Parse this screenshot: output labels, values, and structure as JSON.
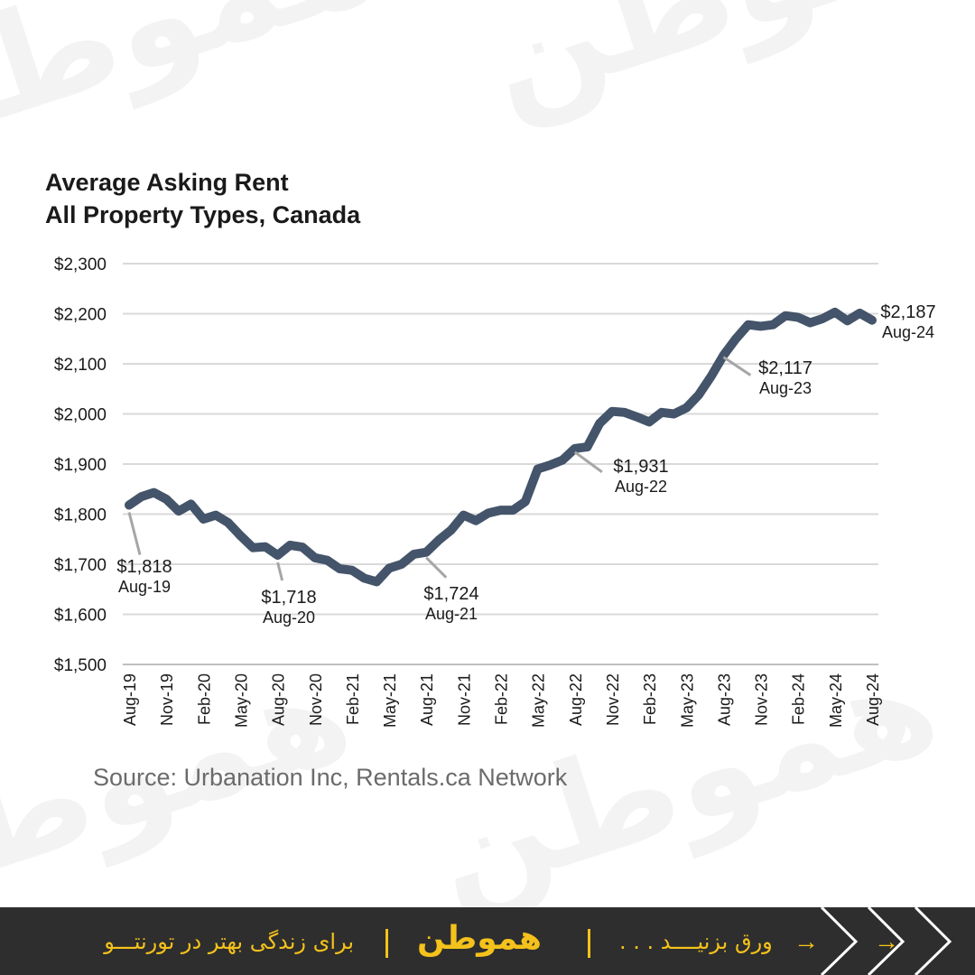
{
  "watermark": {
    "text": "هموطن"
  },
  "footer": {
    "tagline": "برای زندگی بهتر در تورنتـــو",
    "logo": "هموطن",
    "swipe": "ورق بزنیــــد . . .",
    "arrow": "→",
    "accent_color": "#f4c21b",
    "background_color": "#2e2e2e"
  },
  "chart_data": {
    "type": "line",
    "title": [
      "Average Asking Rent",
      "All Property Types, Canada"
    ],
    "source": "Source: Urbanation Inc, Rentals.ca Network",
    "line_color": "#44546a",
    "grid": true,
    "ylim": [
      1500,
      2300
    ],
    "yticks": [
      1500,
      1600,
      1700,
      1800,
      1900,
      2000,
      2100,
      2200,
      2300
    ],
    "ytick_labels": [
      "$1,500",
      "$1,600",
      "$1,700",
      "$1,800",
      "$1,900",
      "$2,000",
      "$2,100",
      "$2,200",
      "$2,300"
    ],
    "xtick_labels": [
      "Aug-19",
      "Nov-19",
      "Feb-20",
      "May-20",
      "Aug-20",
      "Nov-20",
      "Feb-21",
      "May-21",
      "Aug-21",
      "Nov-21",
      "Feb-22",
      "May-22",
      "Aug-22",
      "Nov-22",
      "Feb-23",
      "May-23",
      "Aug-23",
      "Nov-23",
      "Feb-24",
      "May-24",
      "Aug-24"
    ],
    "series": [
      {
        "values": [
          1818,
          1835,
          1843,
          1830,
          1806,
          1820,
          1790,
          1798,
          1783,
          1757,
          1733,
          1735,
          1718,
          1738,
          1734,
          1713,
          1708,
          1691,
          1688,
          1672,
          1665,
          1692,
          1700,
          1720,
          1724,
          1748,
          1768,
          1798,
          1787,
          1802,
          1808,
          1808,
          1825,
          1890,
          1898,
          1908,
          1931,
          1934,
          1981,
          2005,
          2003,
          1994,
          1984,
          2003,
          2000,
          2012,
          2038,
          2075,
          2117,
          2150,
          2178,
          2175,
          2178,
          2196,
          2193,
          2182,
          2190,
          2203,
          2186,
          2201,
          2187
        ]
      }
    ],
    "annotations": [
      {
        "index": 0,
        "value": "$1,818",
        "date": "Aug-19"
      },
      {
        "index": 12,
        "value": "$1,718",
        "date": "Aug-20"
      },
      {
        "index": 24,
        "value": "$1,724",
        "date": "Aug-21"
      },
      {
        "index": 36,
        "value": "$1,931",
        "date": "Aug-22"
      },
      {
        "index": 48,
        "value": "$2,117",
        "date": "Aug-23"
      },
      {
        "index": 60,
        "value": "$2,187",
        "date": "Aug-24"
      }
    ]
  }
}
